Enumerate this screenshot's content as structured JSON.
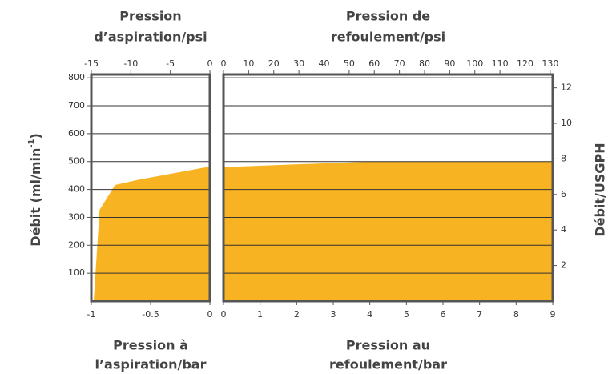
{
  "chart_data": [
    {
      "type": "area",
      "top_title": [
        "Pression",
        "d’aspiration/psi"
      ],
      "bottom_title": [
        "Pression à",
        "l’aspiration/bar"
      ],
      "y_label": [
        "Débit (ml/min",
        "-1",
        ")"
      ],
      "x": [
        -0.98,
        -0.93,
        -0.8,
        -0.6,
        0
      ],
      "values": [
        0,
        327,
        416,
        435,
        482
      ],
      "color": "#f8b322",
      "xlim": [
        -1,
        0
      ],
      "xticks": [
        -1,
        -0.5,
        0
      ],
      "x2lim": [
        -15,
        0
      ],
      "x2ticks": [
        -15,
        -10,
        -5,
        0
      ],
      "ylim": [
        0,
        812
      ],
      "yticks": [
        100,
        200,
        300,
        400,
        500,
        600,
        700,
        800
      ],
      "grid": true
    },
    {
      "type": "area",
      "top_title": [
        "Pression de",
        "refoulement/psi"
      ],
      "bottom_title": [
        "Pression au",
        "refoulement/bar"
      ],
      "y2_label": "Débit/USGPH",
      "x": [
        0,
        4,
        4,
        9
      ],
      "values": [
        480,
        500,
        500,
        500
      ],
      "color": "#f8b322",
      "xlim": [
        0,
        9
      ],
      "xticks": [
        0,
        1,
        2,
        3,
        4,
        5,
        6,
        7,
        8,
        9
      ],
      "x2lim": [
        0,
        131
      ],
      "x2ticks": [
        0,
        10,
        20,
        30,
        40,
        50,
        60,
        70,
        80,
        90,
        100,
        110,
        120,
        130
      ],
      "ylim": [
        0,
        812
      ],
      "yticks": [
        100,
        200,
        300,
        400,
        500,
        600,
        700,
        800
      ],
      "y2lim": [
        0,
        12.75
      ],
      "y2ticks": [
        2,
        4,
        6,
        8,
        10,
        12
      ],
      "grid": true
    }
  ]
}
